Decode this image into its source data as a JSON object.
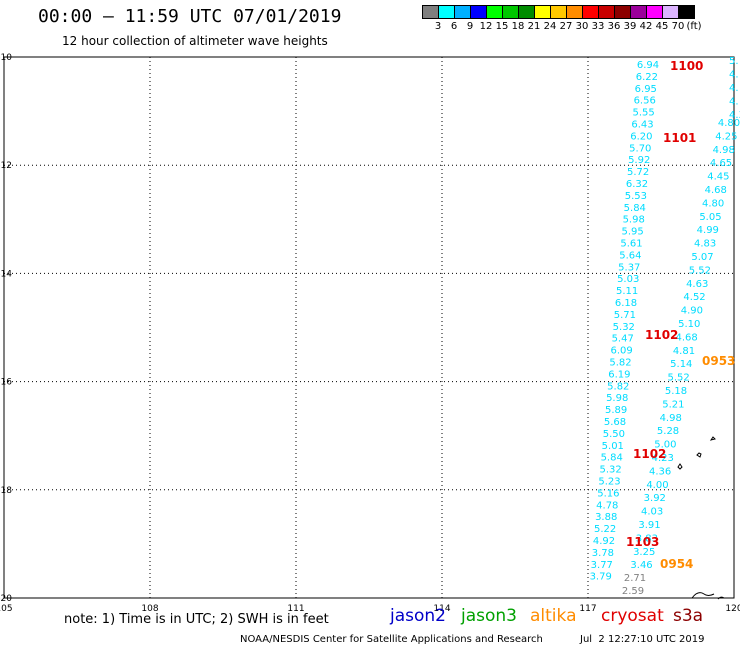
{
  "header": {
    "title": "00:00 – 11:59 UTC 07/01/2019",
    "subtitle": "12 hour collection of altimeter wave heights"
  },
  "legend": {
    "colors": [
      "#7f7f7f",
      "#00ffff",
      "#00b0ff",
      "#0000ff",
      "#00ff00",
      "#00c800",
      "#008c00",
      "#ffff00",
      "#ffc800",
      "#ff8c00",
      "#ff0000",
      "#c80000",
      "#8c0000",
      "#9b009b",
      "#ff00ff",
      "#dcb4ff",
      "#000000"
    ],
    "labels": [
      "3",
      "6",
      "9",
      "12",
      "15",
      "18",
      "21",
      "24",
      "27",
      "30",
      "33",
      "36",
      "39",
      "42",
      "45",
      "70",
      "(ft)"
    ]
  },
  "map": {
    "x_ticks": [
      "105",
      "108",
      "111",
      "114",
      "117",
      "120"
    ],
    "y_ticks": [
      "-10",
      "-12",
      "-14",
      "-16",
      "-18",
      "-20"
    ],
    "lon_range": [
      105,
      120
    ],
    "lat_range": [
      -20,
      -10
    ]
  },
  "tracks": [
    {
      "color": "#00dcff",
      "values": [
        "6.94",
        "6.22",
        "6.95",
        "6.56",
        "5.55",
        "6.43",
        "6.20",
        "5.70",
        "5.92",
        "5.72",
        "6.32",
        "5.53",
        "5.84",
        "5.98",
        "5.95",
        "5.61",
        "5.64",
        "5.37",
        "5.03",
        "5.11",
        "6.18",
        "5.71",
        "5.32",
        "5.47",
        "6.09",
        "5.82",
        "6.19",
        "5.82",
        "5.98",
        "5.89",
        "5.68",
        "5.50",
        "5.01",
        "5.84",
        "5.32",
        "5.23",
        "5.16",
        "4.78",
        "3.88",
        "5.22",
        "4.92",
        "3.78",
        "3.77",
        "3.79"
      ]
    },
    {
      "color": "#00dcff",
      "values": [
        "4.80",
        "4.25",
        "4.98",
        "4.65",
        "4.45",
        "4.68",
        "4.80",
        "5.05",
        "4.99",
        "4.83",
        "5.07",
        "5.52",
        "4.63",
        "4.52",
        "4.90",
        "5.10",
        "4.68",
        "4.81",
        "5.14",
        "5.52",
        "5.18",
        "5.21",
        "4.98",
        "5.28",
        "5.00",
        "4.23",
        "4.36",
        "4.00",
        "3.92",
        "4.03",
        "3.91",
        "3.83",
        "3.25",
        "3.46"
      ]
    },
    {
      "color": "#808080",
      "values": [
        "2.71",
        "2.59"
      ]
    }
  ],
  "edge_values": [
    "5.",
    "4.",
    "4.",
    "4.",
    "4.3"
  ],
  "time_labels": [
    {
      "text": "1100",
      "color": "#e00000"
    },
    {
      "text": "1101",
      "color": "#e00000"
    },
    {
      "text": "1102",
      "color": "#e00000"
    },
    {
      "text": "0953",
      "color": "#ff8c00"
    },
    {
      "text": "1102",
      "color": "#e00000"
    },
    {
      "text": "1103",
      "color": "#e00000"
    },
    {
      "text": "0954",
      "color": "#ff8c00"
    }
  ],
  "footer": {
    "note": "note:  1) Time is in UTC;  2) SWH is in feet",
    "satellites": [
      {
        "name": "jason2",
        "color": "#0000c8"
      },
      {
        "name": "jason3",
        "color": "#00a000"
      },
      {
        "name": "altika",
        "color": "#ff8c00"
      },
      {
        "name": "cryosat",
        "color": "#e00000"
      },
      {
        "name": "s3a",
        "color": "#8c0000"
      }
    ],
    "credit": "NOAA/NESDIS Center for Satellite Applications and Research",
    "timestamp": "Jul  2 12:27:10 UTC 2019"
  }
}
